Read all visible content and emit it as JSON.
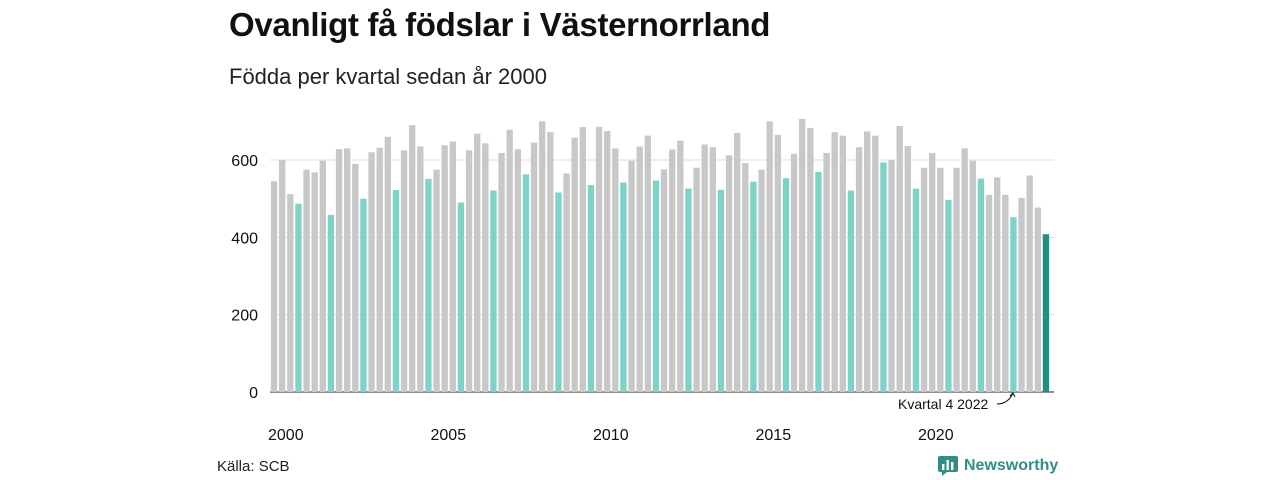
{
  "header": {
    "title": "Ovanligt få födslar i Västernorrland",
    "subtitle": "Födda per kvartal sedan år 2000"
  },
  "footer": {
    "source": "Källa: SCB",
    "brand": "Newsworthy"
  },
  "colors": {
    "bar_default": "#c8c8c8",
    "bar_q4": "#7ed3c9",
    "bar_latest": "#1f8f80",
    "grid": "#dddddd",
    "brand": "#2f8f84"
  },
  "chart_data": {
    "type": "bar",
    "title": "Ovanligt få födslar i Västernorrland",
    "subtitle": "Födda per kvartal sedan år 2000",
    "xlabel": "",
    "ylabel": "",
    "ylim": [
      0,
      760
    ],
    "yticks": [
      0,
      200,
      400,
      600
    ],
    "xticks": [
      "2000",
      "2005",
      "2010",
      "2015",
      "2020"
    ],
    "grid": true,
    "annotation": "Kvartal 4 2022",
    "series": [
      {
        "name": "",
        "start_year": 2000,
        "values": [
          545,
          600,
          512,
          487,
          575,
          568,
          598,
          458,
          628,
          630,
          590,
          500,
          620,
          632,
          660,
          522,
          625,
          690,
          635,
          551,
          575,
          638,
          648,
          490,
          625,
          668,
          643,
          521,
          618,
          678,
          628,
          563,
          645,
          700,
          672,
          516,
          565,
          658,
          685,
          535,
          686,
          675,
          630,
          542,
          598,
          635,
          663,
          547,
          576,
          627,
          650,
          526,
          580,
          640,
          633,
          523,
          612,
          670,
          592,
          544,
          575,
          700,
          665,
          553,
          616,
          706,
          683,
          569,
          618,
          672,
          663,
          521,
          633,
          674,
          663,
          594,
          600,
          688,
          636,
          526,
          580,
          618,
          580,
          497,
          580,
          630,
          598,
          552,
          510,
          555,
          510,
          452,
          502,
          560,
          477,
          408
        ]
      }
    ]
  }
}
